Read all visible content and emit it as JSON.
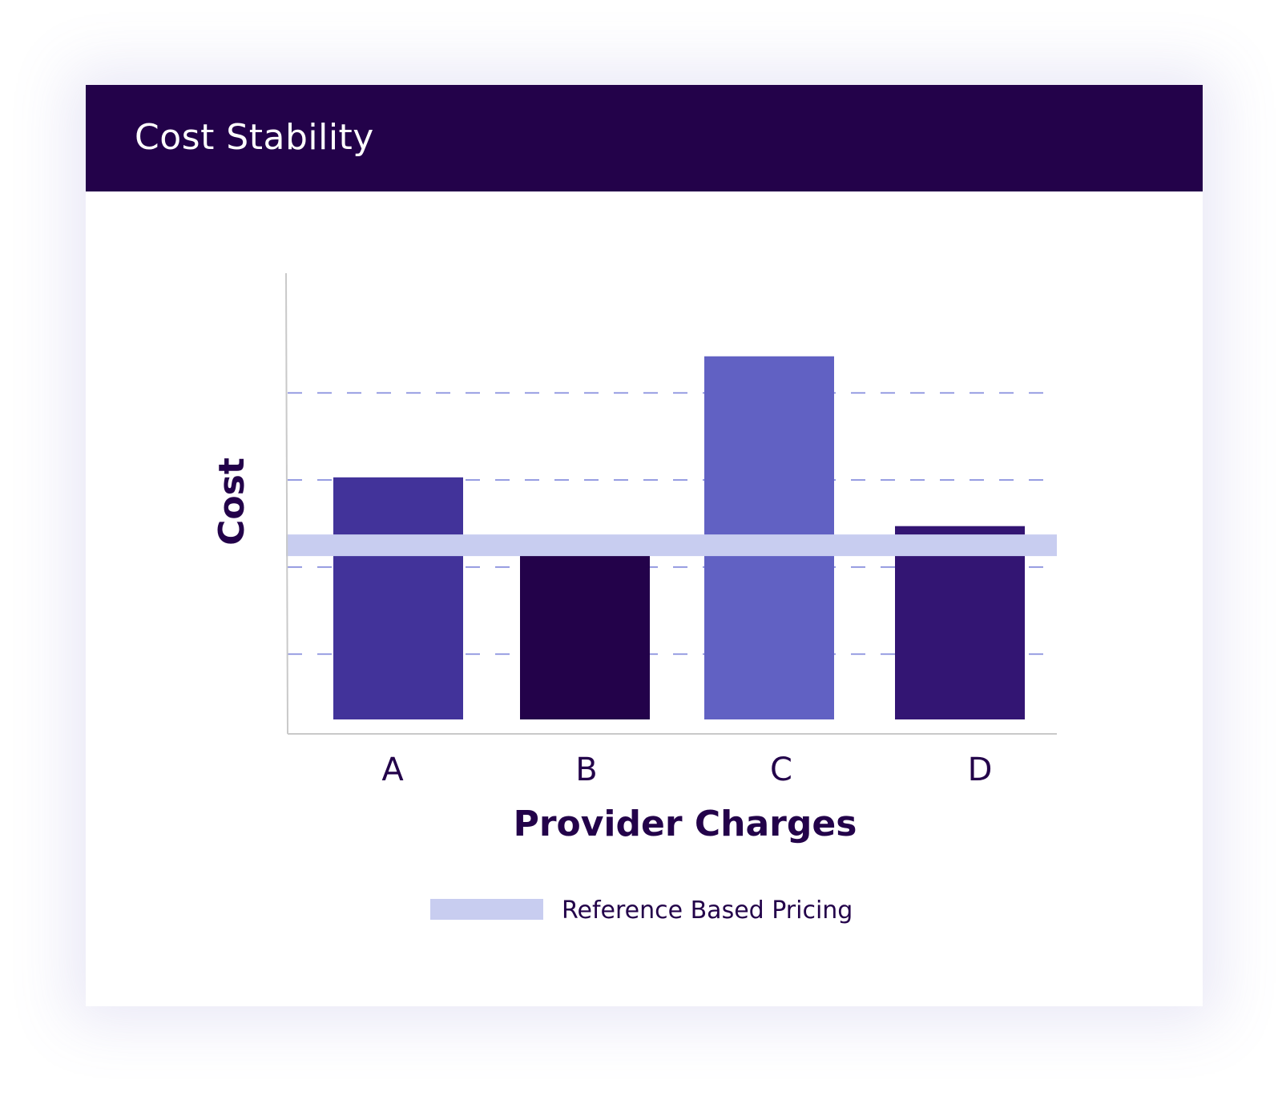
{
  "header": {
    "title": "Cost Stability"
  },
  "chart_data": {
    "type": "bar",
    "title": "Cost Stability",
    "xlabel": "Provider Charges",
    "ylabel": "Cost",
    "categories": [
      "A",
      "B",
      "C",
      "D"
    ],
    "values": [
      2.78,
      1.91,
      4.17,
      2.22
    ],
    "bar_colors": [
      "#42339a",
      "#23024a",
      "#6161c3",
      "#331573"
    ],
    "reference": {
      "name": "Reference Based Pricing",
      "value": 2.0,
      "color": "#c8cdf0"
    },
    "ylim": [
      0,
      4.6
    ],
    "y_ticks_unlabeled": [
      0.75,
      1.75,
      2.75,
      3.75
    ],
    "grid": true,
    "gridline_color": "#7f86db",
    "legend": "bottom-center"
  }
}
